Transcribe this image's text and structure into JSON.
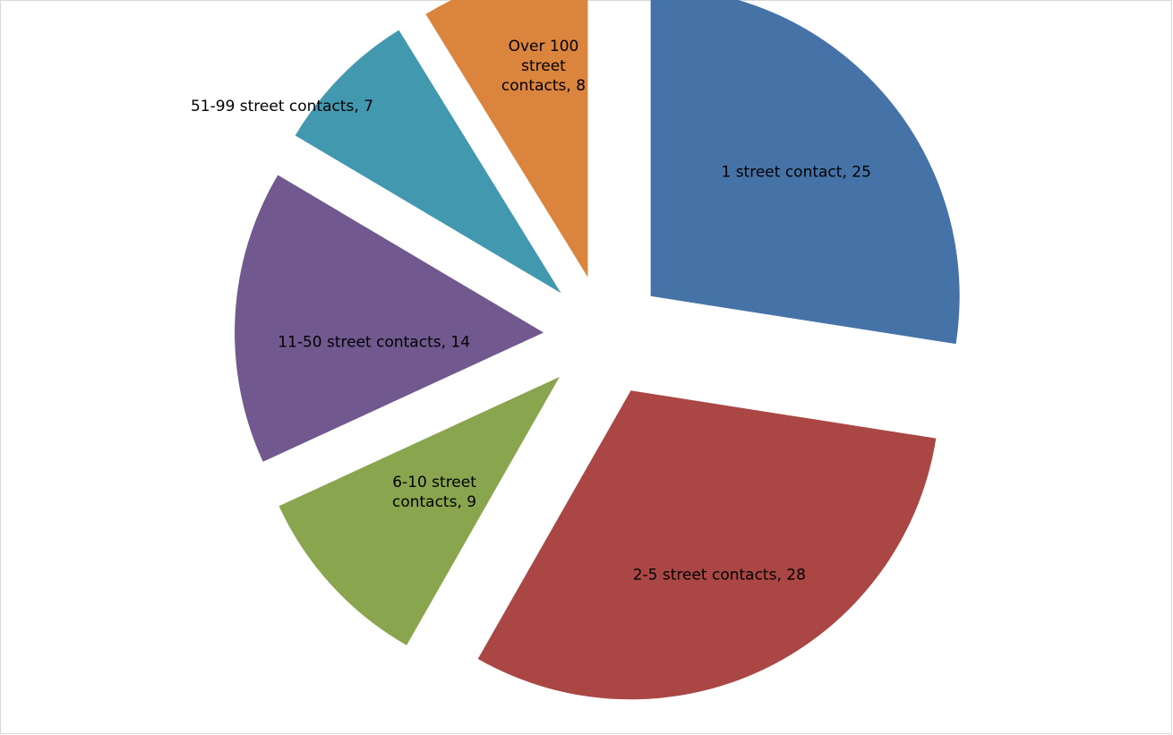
{
  "chart_data": {
    "type": "pie",
    "exploded": true,
    "start_angle_deg": 0,
    "direction": "clockwise",
    "legend": "none",
    "slices": [
      {
        "label": "1 street contact",
        "value": 25,
        "color": "#4572A7",
        "label_text": [
          "1 street contact, 25"
        ]
      },
      {
        "label": "2-5 street contacts",
        "value": 28,
        "color": "#AA4643",
        "label_text": [
          "2-5 street contacts, 28"
        ]
      },
      {
        "label": "6-10 street contacts",
        "value": 9,
        "color": "#89A54E",
        "label_text": [
          "6-10 street",
          "contacts, 9"
        ]
      },
      {
        "label": "11-50 street contacts",
        "value": 14,
        "color": "#71588F",
        "label_text": [
          "11-50 street contacts, 14"
        ]
      },
      {
        "label": "51-99 street contacts",
        "value": 7,
        "color": "#4198AF",
        "label_text": [
          "51-99 street contacts, 7"
        ]
      },
      {
        "label": "Over 100 street contacts",
        "value": 8,
        "color": "#DB843D",
        "label_text": [
          "Over 100",
          "street",
          "contacts, 8"
        ]
      }
    ]
  }
}
